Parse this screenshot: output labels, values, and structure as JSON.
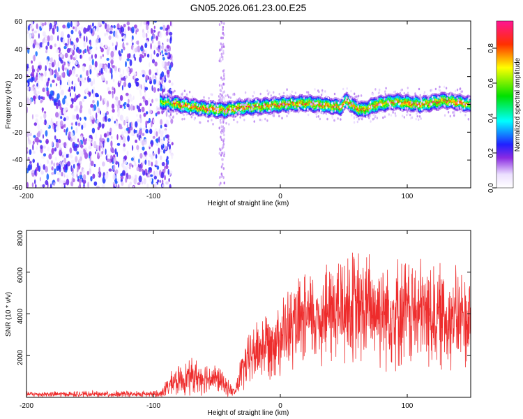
{
  "title": "GN05.2026.061.23.00.E25",
  "chart_data": [
    {
      "type": "heatmap",
      "xlabel": "Height of straight line (km)",
      "ylabel": "Frequency (Hz)",
      "xlim": [
        -200,
        150
      ],
      "ylim": [
        -60,
        60
      ],
      "xticks": [
        "-200",
        "-100",
        "0",
        "100"
      ],
      "yticks": [
        "60",
        "40",
        "20",
        "0",
        "-20",
        "-40",
        "-60"
      ],
      "colorbar": {
        "label": "Normalized spectral amplitude",
        "range": [
          0,
          0.95
        ],
        "ticks": [
          "0.0",
          "0.2",
          "0.4",
          "0.6",
          "0.8"
        ]
      },
      "features": {
        "noise_region_km": [
          -200,
          -90
        ],
        "ridge_start_km": -95,
        "ridge_center_hz": [
          {
            "x": -95,
            "y": 2
          },
          {
            "x": -80,
            "y": 0
          },
          {
            "x": -60,
            "y": -3
          },
          {
            "x": -45,
            "y": -4
          },
          {
            "x": -30,
            "y": -2
          },
          {
            "x": -10,
            "y": -1
          },
          {
            "x": 0,
            "y": 0
          },
          {
            "x": 20,
            "y": 1
          },
          {
            "x": 40,
            "y": -1
          },
          {
            "x": 47,
            "y": -2
          },
          {
            "x": 52,
            "y": 3
          },
          {
            "x": 58,
            "y": -2
          },
          {
            "x": 65,
            "y": -4
          },
          {
            "x": 75,
            "y": 0
          },
          {
            "x": 90,
            "y": 2
          },
          {
            "x": 110,
            "y": 0
          },
          {
            "x": 130,
            "y": 3
          },
          {
            "x": 150,
            "y": 0
          }
        ]
      }
    },
    {
      "type": "line",
      "xlabel": "Height of straight line (km)",
      "ylabel": "SNR (10 * v/v)",
      "xlim": [
        -200,
        150
      ],
      "ylim": [
        0,
        8000
      ],
      "xticks": [
        "-200",
        "-100",
        "0",
        "100"
      ],
      "yticks": [
        "8000",
        "6000",
        "4000",
        "2000"
      ],
      "series": [
        {
          "name": "SNR",
          "color": "#ee2c2c",
          "envelope": [
            {
              "x": -200,
              "base": 150,
              "amp": 150
            },
            {
              "x": -95,
              "base": 150,
              "amp": 200
            },
            {
              "x": -85,
              "base": 700,
              "amp": 700
            },
            {
              "x": -70,
              "base": 1000,
              "amp": 1000
            },
            {
              "x": -50,
              "base": 900,
              "amp": 800
            },
            {
              "x": -36,
              "base": 200,
              "amp": 250
            },
            {
              "x": -30,
              "base": 1300,
              "amp": 1200
            },
            {
              "x": -20,
              "base": 2200,
              "amp": 1700
            },
            {
              "x": 0,
              "base": 3000,
              "amp": 2200
            },
            {
              "x": 20,
              "base": 3700,
              "amp": 2500
            },
            {
              "x": 50,
              "base": 4300,
              "amp": 3200
            },
            {
              "x": 80,
              "base": 4200,
              "amp": 3100
            },
            {
              "x": 110,
              "base": 4000,
              "amp": 3000
            },
            {
              "x": 150,
              "base": 3700,
              "amp": 2700
            }
          ]
        }
      ]
    }
  ]
}
